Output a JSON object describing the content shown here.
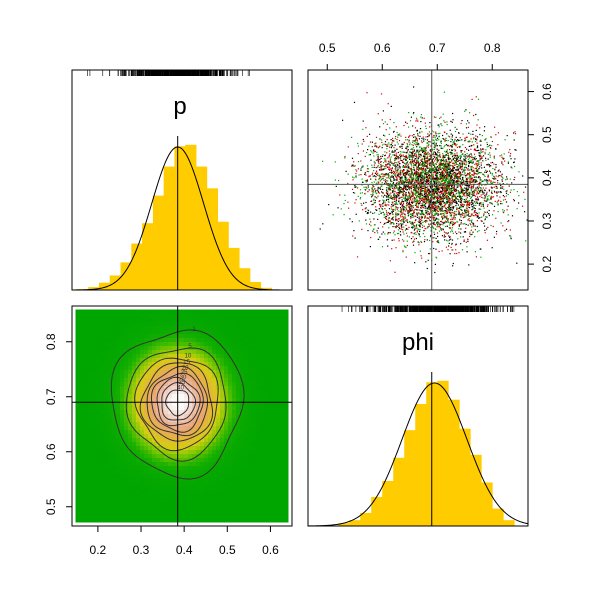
{
  "chart_data": {
    "type": "pairs",
    "variables": [
      "p",
      "phi"
    ],
    "means": {
      "p": 0.385,
      "phi": 0.69
    },
    "sd": {
      "p": 0.06,
      "phi": 0.06
    },
    "panels": [
      {
        "id": "p-hist",
        "type": "bar",
        "label": "p",
        "xlim": [
          0.14,
          0.65
        ],
        "bins": [
          0.165,
          0.19,
          0.215,
          0.24,
          0.265,
          0.29,
          0.315,
          0.34,
          0.365,
          0.39,
          0.415,
          0.44,
          0.465,
          0.49,
          0.515,
          0.54,
          0.565,
          0.59
        ],
        "values": [
          0.006,
          0.02,
          0.05,
          0.1,
          0.19,
          0.32,
          0.46,
          0.65,
          0.85,
          0.99,
          1.0,
          0.85,
          0.7,
          0.47,
          0.29,
          0.15,
          0.055,
          0.015
        ],
        "density_mean": 0.385,
        "density_sd": 0.06,
        "vline": 0.385
      },
      {
        "id": "phi-hist",
        "type": "bar",
        "label": "phi",
        "xlim": [
          0.465,
          0.865
        ],
        "bins": [
          0.53,
          0.55,
          0.57,
          0.59,
          0.61,
          0.63,
          0.65,
          0.67,
          0.69,
          0.71,
          0.73,
          0.75,
          0.77,
          0.79,
          0.81,
          0.83
        ],
        "values": [
          0.02,
          0.04,
          0.09,
          0.2,
          0.31,
          0.47,
          0.66,
          0.84,
          0.99,
          1.0,
          0.87,
          0.67,
          0.49,
          0.3,
          0.12,
          0.04
        ],
        "density_mean": 0.695,
        "density_sd": 0.059,
        "vline": 0.69
      },
      {
        "id": "scatter",
        "type": "scatter",
        "xlim": [
          0.465,
          0.865
        ],
        "ylim": [
          0.14,
          0.65
        ],
        "x_ticks": [
          "0.5",
          "0.6",
          "0.7",
          "0.8"
        ],
        "y_ticks": [
          "0.2",
          "0.3",
          "0.4",
          "0.5",
          "0.6"
        ],
        "n_points": 5200,
        "colors": [
          "#000000",
          "#dd0000",
          "#00aa00"
        ],
        "vline": 0.69,
        "hline": 0.385
      },
      {
        "id": "density-contour",
        "type": "heatmap",
        "xlim": [
          0.14,
          0.65
        ],
        "ylim": [
          0.465,
          0.865
        ],
        "x_ticks": [
          "0.2",
          "0.3",
          "0.4",
          "0.5",
          "0.6"
        ],
        "y_ticks": [
          "0.5",
          "0.6",
          "0.7",
          "0.8"
        ],
        "contour_levels": [
          1,
          5,
          10,
          15,
          20,
          25,
          30,
          35,
          40
        ],
        "vline": 0.385,
        "hline": 0.69
      }
    ]
  }
}
